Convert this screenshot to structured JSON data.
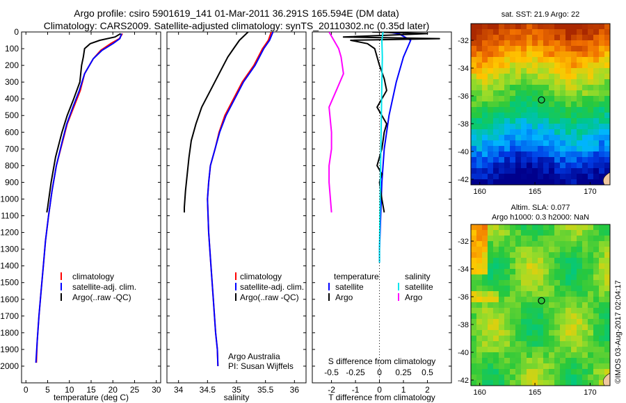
{
  "header": {
    "line1": "Argo profile: csiro 5901619_141 01-Mar-2011 36.291S 165.594E (DM data)",
    "line2": "Climatology: CARS2009. Satellite-adjusted climatology: synTS_20110302.nc (0.35d later)"
  },
  "timestamp": "©IMOS 03-Aug-2017 02:04:17",
  "colors": {
    "climatology": "#ff0000",
    "satellite": "#0000ff",
    "argo": "#000000",
    "salinity_satellite": "#00e5ee",
    "salinity_argo": "#ff00ff"
  },
  "chart_data": [
    {
      "type": "line",
      "id": "temperature",
      "xlabel": "temperature (deg C)",
      "ylabel": "",
      "xlim": [
        -1,
        31
      ],
      "ylim": [
        2100,
        0
      ],
      "xticks": [
        "0",
        "5",
        "10",
        "15",
        "20",
        "25",
        "30"
      ],
      "xtick_values": [
        0,
        5,
        10,
        15,
        20,
        25,
        30
      ],
      "yticks": [
        "0",
        "100",
        "200",
        "300",
        "400",
        "500",
        "600",
        "700",
        "800",
        "900",
        "1000",
        "1100",
        "1200",
        "1300",
        "1400",
        "1500",
        "1600",
        "1700",
        "1800",
        "1900",
        "2000"
      ],
      "ytick_values": [
        0,
        100,
        200,
        300,
        400,
        500,
        600,
        700,
        800,
        900,
        1000,
        1100,
        1200,
        1300,
        1400,
        1500,
        1600,
        1700,
        1800,
        1900,
        2000
      ],
      "legend": [
        "climatology",
        "satellite-adj. clim.",
        "Argo(..raw -QC)"
      ],
      "series": [
        {
          "name": "climatology",
          "color": "#ff0000",
          "x": [
            22.2,
            21.5,
            19.5,
            17.2,
            15.5,
            13.5,
            12.5,
            11.0,
            9.5,
            8.5,
            7.0,
            6.0,
            5.2,
            4.5,
            4.0,
            3.5,
            3.0,
            2.6,
            2.4
          ],
          "y": [
            10,
            40,
            70,
            110,
            160,
            250,
            350,
            450,
            550,
            650,
            800,
            950,
            1100,
            1250,
            1400,
            1550,
            1700,
            1850,
            1980
          ]
        },
        {
          "name": "satellite-adj. clim.",
          "color": "#0000ff",
          "x": [
            22.0,
            21.6,
            20.0,
            17.5,
            15.5,
            13.5,
            12.3,
            10.8,
            9.4,
            8.4,
            7.0,
            6.0,
            5.2,
            4.5,
            4.0,
            3.5,
            3.0,
            2.6,
            2.3
          ],
          "y": [
            10,
            40,
            70,
            110,
            160,
            250,
            350,
            450,
            550,
            650,
            800,
            950,
            1100,
            1250,
            1400,
            1550,
            1700,
            1850,
            1980
          ]
        },
        {
          "name": "Argo(..raw -QC)",
          "color": "#000000",
          "x": [
            21.8,
            20.5,
            17.0,
            14.8,
            13.5,
            13.2,
            12.8,
            12.4,
            11.0,
            9.5,
            8.3,
            6.8,
            5.8,
            5.0,
            4.8
          ],
          "y": [
            10,
            30,
            50,
            70,
            100,
            150,
            200,
            300,
            400,
            500,
            600,
            750,
            900,
            1050,
            1080
          ]
        }
      ]
    },
    {
      "type": "line",
      "id": "salinity",
      "xlabel": "salinity",
      "ylabel": "",
      "xlim": [
        33.8,
        36.2
      ],
      "ylim": [
        2100,
        0
      ],
      "xticks": [
        "34",
        "34.5",
        "35",
        "35.5",
        "36"
      ],
      "xtick_values": [
        34,
        34.5,
        35,
        35.5,
        36
      ],
      "legend": [
        "climatology",
        "satellite-adj. clim.",
        "Argo(..raw -QC)"
      ],
      "annotation": [
        "Argo Australia",
        "PI: Susan Wijffels"
      ],
      "series": [
        {
          "name": "climatology",
          "color": "#ff0000",
          "x": [
            35.6,
            35.55,
            35.45,
            35.3,
            35.1,
            34.95,
            34.8,
            34.7,
            34.63,
            34.55,
            34.52,
            34.5,
            34.52,
            34.56,
            34.6,
            34.64,
            34.67,
            34.68
          ],
          "y": [
            0,
            50,
            100,
            200,
            300,
            400,
            500,
            600,
            700,
            800,
            900,
            1000,
            1200,
            1400,
            1600,
            1800,
            1900,
            2000
          ]
        },
        {
          "name": "satellite-adj. clim.",
          "color": "#0000ff",
          "x": [
            35.63,
            35.57,
            35.47,
            35.32,
            35.12,
            34.97,
            34.82,
            34.71,
            34.63,
            34.55,
            34.52,
            34.5,
            34.52,
            34.56,
            34.6,
            34.64,
            34.67,
            34.68
          ],
          "y": [
            0,
            50,
            100,
            200,
            300,
            400,
            500,
            600,
            700,
            800,
            900,
            1000,
            1200,
            1400,
            1600,
            1800,
            1900,
            2000
          ]
        },
        {
          "name": "Argo(..raw -QC)",
          "color": "#000000",
          "x": [
            35.2,
            35.05,
            34.95,
            34.85,
            34.7,
            34.55,
            34.4,
            34.3,
            34.22,
            34.18,
            34.15,
            34.12,
            34.1,
            34.1
          ],
          "y": [
            0,
            50,
            100,
            150,
            250,
            350,
            450,
            550,
            650,
            750,
            850,
            950,
            1050,
            1080
          ]
        }
      ]
    },
    {
      "type": "line",
      "id": "difference",
      "xlabel": "T difference from climatology",
      "xlabel_top": "S difference from climatology",
      "xlim": [
        -2.8,
        3.0
      ],
      "ylim": [
        2100,
        0
      ],
      "xticks": [
        "-2",
        "-1",
        "0",
        "1",
        "2"
      ],
      "xtick_values": [
        -2,
        -1,
        0,
        1,
        2
      ],
      "xticks_top": [
        "-0.5",
        "-0.25",
        "0",
        "0.25",
        "0.5"
      ],
      "legend_temperature": [
        "temperature",
        "satellite",
        "Argo"
      ],
      "legend_salinity": [
        "salinity",
        "satellite",
        "Argo"
      ],
      "series": [
        {
          "name": "satellite",
          "group": "temperature",
          "color": "#0000ff",
          "x": [
            0.3,
            0.8,
            1.3,
            1.0,
            0.7,
            0.4,
            0.2,
            0.1,
            0.05,
            0.0,
            0.0
          ],
          "y": [
            0,
            10,
            50,
            150,
            300,
            500,
            700,
            900,
            1100,
            1300,
            1380
          ]
        },
        {
          "name": "Argo",
          "group": "temperature",
          "color": "#000000",
          "x": [
            -0.3,
            2.0,
            -1.5,
            2.5,
            -1.2,
            -0.5,
            -0.2,
            0.0,
            0.2,
            0.3,
            -0.1,
            0.3,
            0.2,
            0.1,
            -0.1,
            0.1,
            0.0,
            0.1,
            0.2
          ],
          "y": [
            0,
            10,
            30,
            40,
            50,
            70,
            100,
            200,
            280,
            350,
            450,
            550,
            600,
            700,
            800,
            850,
            900,
            1000,
            1080
          ]
        },
        {
          "name": "satellite",
          "group": "salinity",
          "color": "#00e5ee",
          "x": [
            0.15,
            0.1,
            0.12,
            0.1,
            0.08,
            0.06,
            0.04,
            0.02,
            0.0,
            0.0
          ],
          "y": [
            0,
            50,
            150,
            300,
            500,
            700,
            900,
            1100,
            1300,
            1380
          ]
        },
        {
          "name": "Argo",
          "group": "salinity",
          "color": "#ff00ff",
          "x": [
            -2.1,
            -1.9,
            -1.7,
            -1.6,
            -1.5,
            -1.8,
            -2.1,
            -2.0,
            -2.0,
            -2.1,
            -2.1,
            -2.0
          ],
          "y": [
            0,
            50,
            100,
            150,
            250,
            350,
            450,
            600,
            700,
            800,
            900,
            1080
          ]
        }
      ]
    },
    {
      "type": "heatmap",
      "id": "sst_map",
      "title": "sat. SST: 21.9 Argo: 22",
      "xticks": [
        "160",
        "165",
        "170"
      ],
      "xtick_values": [
        160,
        165,
        170
      ],
      "yticks": [
        "-32",
        "-34",
        "-36",
        "-38",
        "-40",
        "-42"
      ],
      "ytick_values": [
        -32,
        -34,
        -36,
        -38,
        -40,
        -42
      ],
      "xlim": [
        159.2,
        171.8
      ],
      "ylim": [
        -42.4,
        -30.8
      ],
      "marker": {
        "lon": 165.594,
        "lat": -36.291
      }
    },
    {
      "type": "heatmap",
      "id": "sla_map",
      "title": "Altim. SLA: 0.077",
      "subtitle": "Argo h1000: 0.3 h2000: NaN",
      "xticks": [
        "160",
        "165",
        "170"
      ],
      "xtick_values": [
        160,
        165,
        170
      ],
      "yticks": [
        "-32",
        "-34",
        "-36",
        "-38",
        "-40",
        "-42"
      ],
      "ytick_values": [
        -32,
        -34,
        -36,
        -38,
        -40,
        -42
      ],
      "xlim": [
        159.2,
        171.8
      ],
      "ylim": [
        -42.4,
        -30.8
      ],
      "marker": {
        "lon": 165.594,
        "lat": -36.291
      }
    }
  ]
}
